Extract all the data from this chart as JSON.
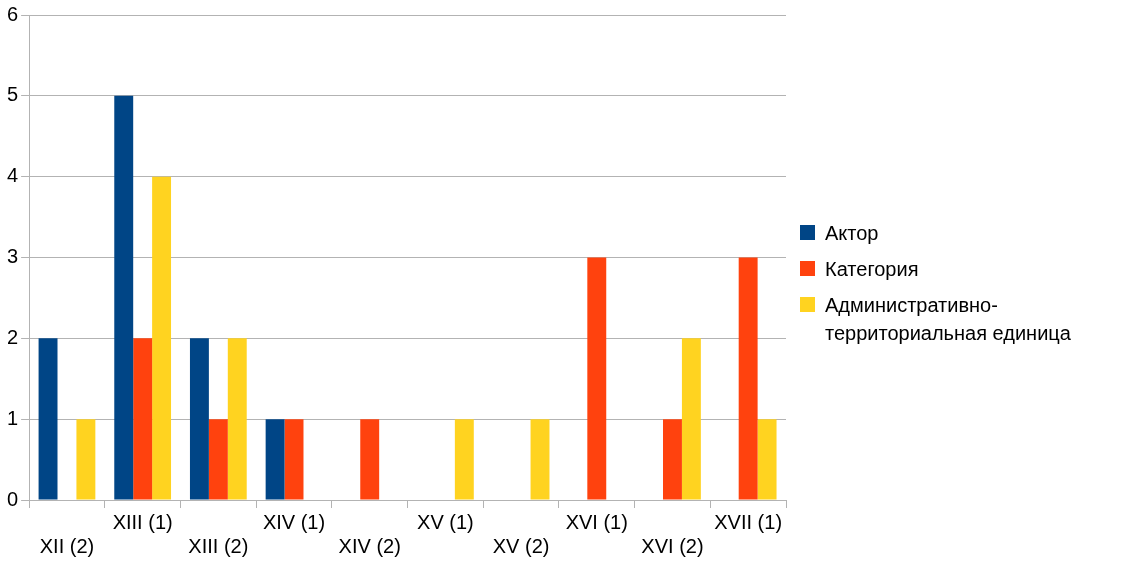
{
  "chart_data": {
    "type": "bar",
    "categories": [
      "XII (2)",
      "XIII (1)",
      "XIII (2)",
      "XIV (1)",
      "XIV (2)",
      "XV (1)",
      "XV (2)",
      "XVI (1)",
      "XVI (2)",
      "XVII (1)"
    ],
    "series": [
      {
        "name": "Актор",
        "color": "#004586",
        "values": [
          2,
          5,
          2,
          1,
          0,
          0,
          0,
          0,
          0,
          0
        ]
      },
      {
        "name": "Категория",
        "color": "#ff420e",
        "values": [
          0,
          2,
          1,
          1,
          1,
          0,
          0,
          3,
          1,
          3
        ]
      },
      {
        "name": "Административно-территориальная единица",
        "color": "#ffd320",
        "values": [
          1,
          4,
          2,
          0,
          0,
          1,
          1,
          0,
          2,
          1
        ]
      }
    ],
    "ylim": [
      0,
      6
    ],
    "yticks": [
      0,
      1,
      2,
      3,
      4,
      5,
      6
    ],
    "grid": "y",
    "legend": "right"
  }
}
